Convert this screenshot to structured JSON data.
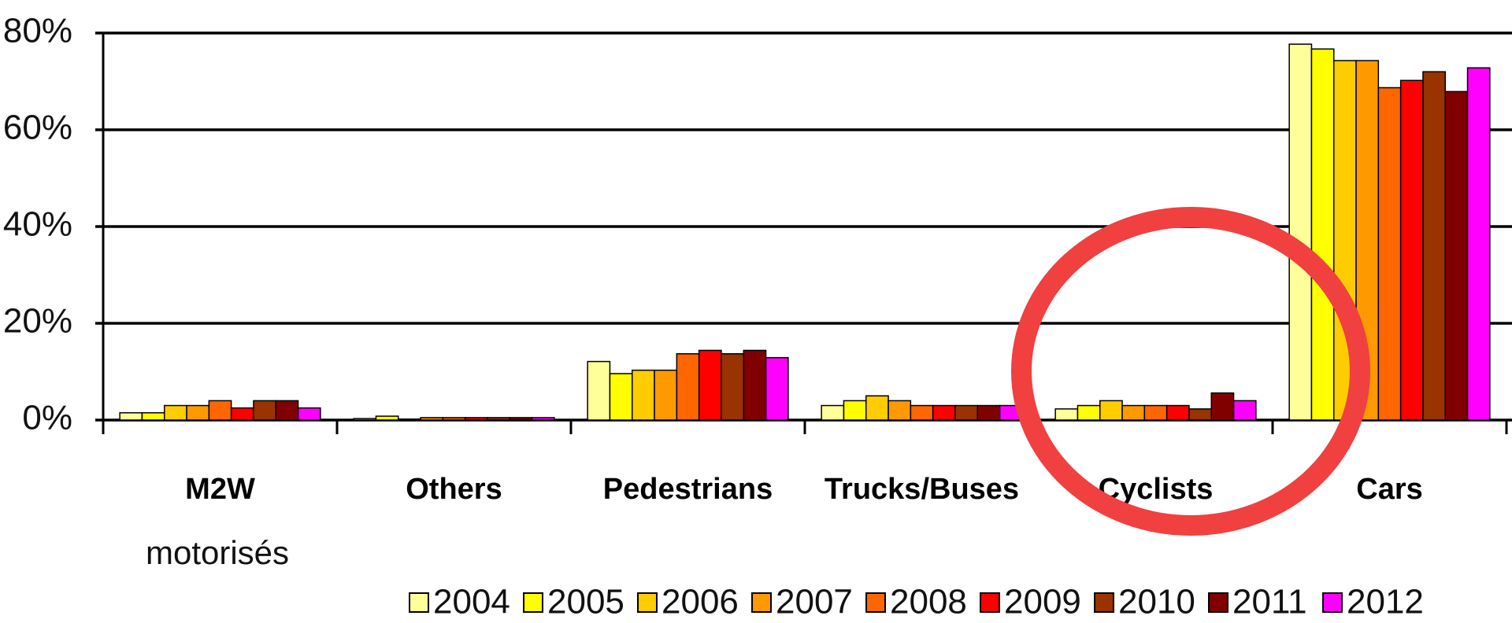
{
  "chart_data": {
    "type": "bar",
    "categories": [
      "M2W",
      "Others",
      "Pedestrians",
      "Trucks/Buses",
      "Cyclists",
      "Cars"
    ],
    "series": [
      {
        "name": "2004",
        "color": "#ffff99",
        "values": [
          1.5,
          0.3,
          12.1,
          3,
          2.3,
          77.7
        ]
      },
      {
        "name": "2005",
        "color": "#ffff00",
        "values": [
          1.5,
          0.8,
          9.6,
          4,
          3,
          76.7
        ]
      },
      {
        "name": "2006",
        "color": "#ffcc00",
        "values": [
          3,
          0.2,
          10.3,
          5,
          4,
          74.3
        ]
      },
      {
        "name": "2007",
        "color": "#ff9900",
        "values": [
          3,
          0.5,
          10.3,
          4,
          3,
          74.3
        ]
      },
      {
        "name": "2008",
        "color": "#ff6600",
        "values": [
          4,
          0.5,
          13.7,
          3,
          3,
          68.7
        ]
      },
      {
        "name": "2009",
        "color": "#ff0000",
        "values": [
          2.5,
          0.5,
          14.4,
          3,
          3,
          70.2
        ]
      },
      {
        "name": "2010",
        "color": "#993300",
        "values": [
          4,
          0.5,
          13.7,
          3,
          2.3,
          72
        ]
      },
      {
        "name": "2011",
        "color": "#800000",
        "values": [
          4,
          0.5,
          14.4,
          3,
          5.6,
          67.9
        ]
      },
      {
        "name": "2012",
        "color": "#ff00ff",
        "values": [
          2.5,
          0.5,
          12.9,
          3,
          4,
          72.8
        ]
      }
    ],
    "ylim": [
      0,
      80
    ],
    "yticks": [
      {
        "value": 0,
        "label": "0%"
      },
      {
        "value": 20,
        "label": "20%"
      },
      {
        "value": 40,
        "label": "40%"
      },
      {
        "value": 60,
        "label": "60%"
      },
      {
        "value": 80,
        "label": "80%"
      }
    ],
    "grid": true,
    "legend": "bottom",
    "annotations": [
      "motorisés"
    ]
  }
}
